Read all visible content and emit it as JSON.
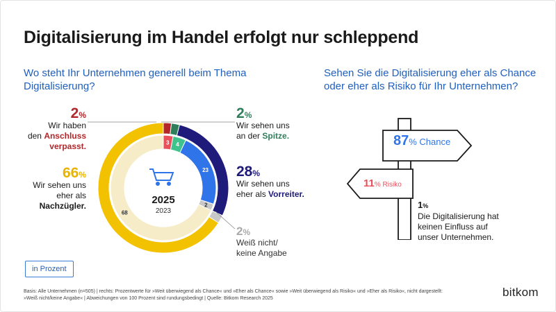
{
  "title": "Digitalisierung im Handel erfolgt nur schleppend",
  "left_question": "Wo steht Ihr Unternehmen generell beim Thema Digitalisierung?",
  "right_question": "Sehen Sie die Digitalisierung eher als Chance oder eher als Risiko für Ihr Unternehmen?",
  "labels": {
    "verpasst": {
      "value": "2",
      "unit": "%",
      "line1": "Wir haben",
      "line2": "den",
      "bold": "Anschluss verpasst."
    },
    "spitze": {
      "value": "2",
      "unit": "%",
      "line1": "Wir sehen uns",
      "line2": "an der",
      "bold": "Spitze."
    },
    "nachzuegler": {
      "value": "66",
      "unit": "%",
      "line1": "Wir sehen uns",
      "line2": "eher als",
      "bold": "Nachzügler."
    },
    "vorreiter": {
      "value": "28",
      "unit": "%",
      "line1": "Wir sehen uns",
      "line2": "eher als",
      "bold": "Vorreiter."
    },
    "weiss": {
      "value": "2",
      "unit": "%",
      "line1": "Weiß nicht/",
      "line2": "keine Angabe"
    }
  },
  "center": {
    "year_current": "2025",
    "year_previous": "2023"
  },
  "sign": {
    "chance_value": "87",
    "chance_text": "% Chance",
    "risiko_value": "11",
    "risiko_text": "% Risiko",
    "kein_value": "1",
    "kein_unit": "%",
    "kein_text": "Die Digitalisierung hat keinen Einfluss auf unser Unternehmen."
  },
  "unit_badge": "in Prozent",
  "footnote": "Basis: Alle Unternehmen (n=505) | rechts: Prozentwerte für »Weit überwiegend als Chance« und »Eher als Chance« sowie »Weit überwiegend als Risiko« und »Eher als Risiko«, nicht dargestellt: »Weiß nicht/keine Angabe« | Abweichungen von 100 Prozent sind rundungsbedingt | Quelle: Bitkom Research 2025",
  "logo": "bitkom",
  "chart_data": [
    {
      "type": "pie",
      "title": "Wo steht Ihr Unternehmen generell beim Thema Digitalisierung?",
      "series": [
        {
          "name": "2025",
          "categories": [
            "Anschluss verpasst",
            "Spitze",
            "Vorreiter",
            "Weiß nicht/keine Angabe",
            "Nachzügler"
          ],
          "values": [
            2,
            2,
            28,
            2,
            66
          ]
        },
        {
          "name": "2023",
          "categories": [
            "Anschluss verpasst",
            "Spitze",
            "Vorreiter",
            "Weiß nicht/keine Angabe",
            "Nachzügler"
          ],
          "values": [
            3,
            4,
            23,
            2,
            68
          ],
          "labels": [
            "3",
            "4",
            "23",
            "2",
            "68"
          ]
        }
      ],
      "colors": [
        "#b3262a",
        "#2e7d5b",
        "#1f1b7a",
        "#c8c8c8",
        "#f2c200"
      ],
      "inner_colors": [
        "#e8505b",
        "#3fc38c",
        "#2f74e8",
        "#c8c8c8",
        "#f6ecc8"
      ]
    },
    {
      "type": "bar",
      "title": "Sehen Sie die Digitalisierung eher als Chance oder eher als Risiko für Ihr Unternehmen?",
      "categories": [
        "Chance",
        "Risiko",
        "Kein Einfluss"
      ],
      "values": [
        87,
        11,
        1
      ]
    }
  ]
}
